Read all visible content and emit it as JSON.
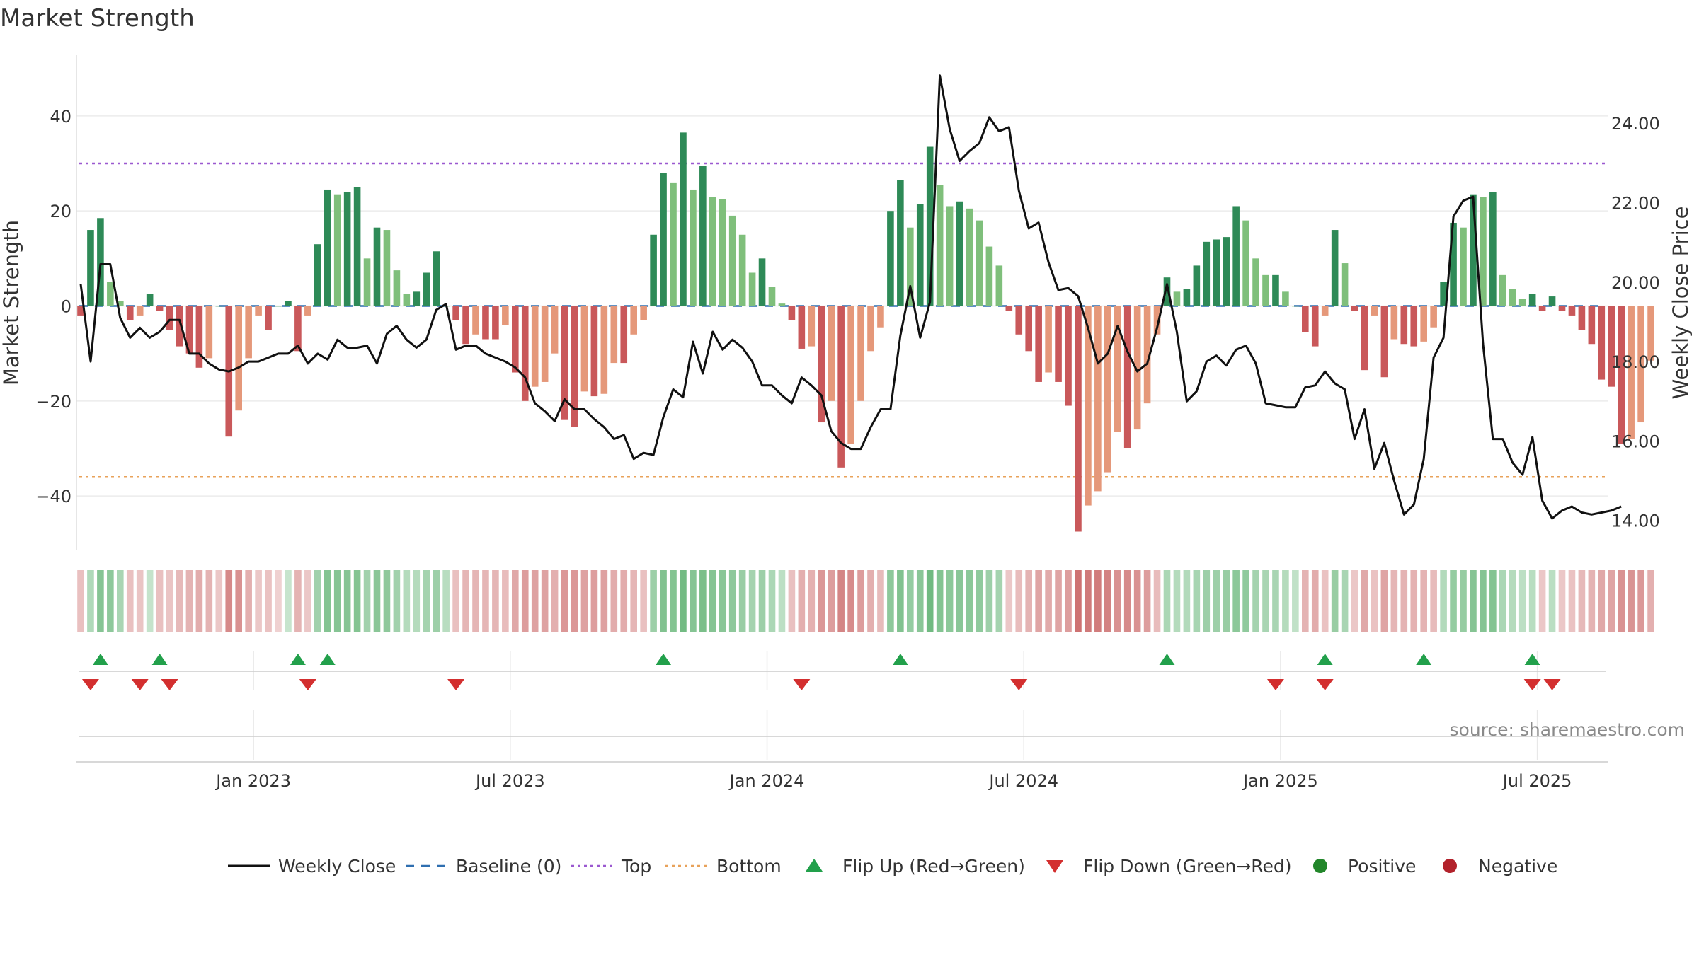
{
  "title": "Market Strength",
  "source": "source: sharemaestro.com",
  "colors": {
    "line": "#111111",
    "baseline": "#2f6fb0",
    "top": "#9b59d0",
    "bottom": "#e8a25a",
    "flip_up": "#22a04b",
    "flip_down": "#d32f2f",
    "positive": "#22862a",
    "negative": "#b2222b"
  },
  "chart_data": {
    "type": "bar+line",
    "title": "Market Strength",
    "ylabel": "Market Strength",
    "y2label": "Weekly Close Price",
    "ylim": [
      -51,
      51
    ],
    "y2lim": [
      13.3,
      25.5
    ],
    "yticks": [
      40,
      20,
      0,
      -20,
      -40
    ],
    "yticklabels": [
      "40",
      "20",
      "0",
      "−20",
      "−40"
    ],
    "y2ticks": [
      24,
      22,
      20,
      18,
      16,
      14
    ],
    "y2ticklabels": [
      "24.00",
      "22.00",
      "20.00",
      "18.00",
      "16.00",
      "14.00"
    ],
    "xlabels": [
      "Jan 2023",
      "Jul 2023",
      "Jan 2024",
      "Jul 2024",
      "Jan 2025",
      "Jul 2025"
    ],
    "xlabel_week_index": [
      17.5,
      43.5,
      69.5,
      95.5,
      121.5,
      147.5
    ],
    "reference_lines": {
      "baseline": 0,
      "top": 30,
      "bottom": -36
    },
    "strength": [
      -2,
      16,
      18.5,
      5,
      1,
      -3,
      -2,
      2.5,
      -1,
      -5,
      -8.5,
      -10,
      -13,
      -11,
      0,
      -27.5,
      -22,
      -11,
      -2,
      -5,
      0,
      1,
      -9.5,
      -2,
      13,
      24.5,
      23.5,
      24,
      25,
      10,
      16.5,
      16,
      7.5,
      2.5,
      3,
      7,
      11.5,
      0,
      -3,
      -8,
      -6,
      -7,
      -7,
      -4,
      -14,
      -20,
      -17,
      -16,
      -10,
      -24,
      -25.5,
      -18,
      -19,
      -18.5,
      -12,
      -12,
      -6,
      -3,
      15,
      28,
      26,
      36.5,
      24.5,
      29.5,
      23,
      22.5,
      19,
      15,
      7,
      10,
      4,
      0.5,
      -3,
      -9,
      -8.5,
      -24.5,
      -20,
      -34,
      -29,
      -20,
      -9.5,
      -4.5,
      20,
      26.5,
      16.5,
      21.5,
      33.5,
      25.5,
      21,
      22,
      20.5,
      18,
      12.5,
      8.5,
      -1,
      -6,
      -9.5,
      -16,
      -14,
      -16,
      -21,
      -47.5,
      -42,
      -39,
      -35,
      -26.5,
      -30,
      -26,
      -20.5,
      -6,
      6,
      3,
      3.5,
      8.5,
      13.5,
      14,
      14.5,
      21,
      18,
      10,
      6.5,
      6.5,
      3,
      0,
      -5.5,
      -8.5,
      -2,
      16,
      9,
      -1,
      -13.5,
      -2,
      -15,
      -7,
      -8,
      -8.5,
      -7.5,
      -4.5,
      5,
      17.5,
      16.5,
      23.5,
      23,
      24,
      6.5,
      3.5,
      1.5,
      2.5,
      -1,
      2,
      -1,
      -2,
      -5,
      -8,
      -15.5,
      -17,
      -29,
      -28,
      -24.5,
      -11.5
    ],
    "close": [
      19.95,
      18.0,
      20.45,
      20.45,
      19.1,
      18.6,
      18.85,
      18.6,
      18.75,
      19.05,
      19.05,
      18.2,
      18.2,
      17.95,
      17.8,
      17.75,
      17.85,
      18.0,
      18.0,
      18.1,
      18.2,
      18.2,
      18.4,
      17.95,
      18.2,
      18.05,
      18.55,
      18.35,
      18.35,
      18.4,
      17.95,
      18.7,
      18.9,
      18.55,
      18.35,
      18.55,
      19.3,
      19.45,
      18.3,
      18.4,
      18.4,
      18.2,
      18.1,
      18.0,
      17.85,
      17.6,
      16.95,
      16.75,
      16.5,
      17.05,
      16.8,
      16.8,
      16.55,
      16.35,
      16.05,
      16.15,
      15.55,
      15.7,
      15.65,
      16.6,
      17.3,
      17.1,
      18.5,
      17.7,
      18.75,
      18.3,
      18.55,
      18.35,
      18.0,
      17.4,
      17.4,
      17.15,
      16.95,
      17.6,
      17.4,
      17.15,
      16.25,
      15.95,
      15.8,
      15.8,
      16.35,
      16.8,
      16.8,
      18.65,
      19.9,
      18.6,
      19.5,
      25.2,
      23.85,
      23.05,
      23.3,
      23.5,
      24.15,
      23.8,
      23.9,
      22.3,
      21.35,
      21.5,
      20.5,
      19.8,
      19.85,
      19.65,
      18.85,
      17.95,
      18.2,
      18.9,
      18.25,
      17.75,
      17.95,
      18.85,
      19.95,
      18.75,
      17.0,
      17.25,
      18.0,
      18.15,
      17.9,
      18.3,
      18.4,
      17.95,
      16.95,
      16.9,
      16.85,
      16.85,
      17.35,
      17.4,
      17.75,
      17.45,
      17.3,
      16.05,
      16.8,
      15.3,
      15.95,
      15.0,
      14.15,
      14.4,
      15.55,
      18.1,
      18.6,
      21.65,
      22.05,
      22.15,
      18.45,
      16.05,
      16.05,
      15.45,
      15.15,
      16.1,
      14.5,
      14.05,
      14.25,
      14.35,
      14.2,
      14.15,
      14.2,
      14.25,
      14.35
    ],
    "regime_shade": [
      0.22,
      0.28,
      0.58,
      0.52,
      0.32,
      0.22,
      0.18,
      0.12,
      0.22,
      0.18,
      0.28,
      0.32,
      0.38,
      0.32,
      0.15,
      0.66,
      0.6,
      0.35,
      0.15,
      0.2,
      0.08,
      0.1,
      0.32,
      0.15,
      0.38,
      0.6,
      0.58,
      0.58,
      0.6,
      0.38,
      0.55,
      0.52,
      0.38,
      0.25,
      0.25,
      0.35,
      0.42,
      0.22,
      0.22,
      0.3,
      0.3,
      0.3,
      0.3,
      0.25,
      0.42,
      0.5,
      0.48,
      0.46,
      0.36,
      0.55,
      0.56,
      0.48,
      0.5,
      0.48,
      0.38,
      0.38,
      0.3,
      0.22,
      0.42,
      0.62,
      0.6,
      0.72,
      0.58,
      0.66,
      0.58,
      0.56,
      0.52,
      0.45,
      0.36,
      0.42,
      0.3,
      0.18,
      0.22,
      0.36,
      0.34,
      0.56,
      0.5,
      0.7,
      0.64,
      0.5,
      0.36,
      0.26,
      0.52,
      0.62,
      0.48,
      0.56,
      0.74,
      0.6,
      0.54,
      0.56,
      0.54,
      0.5,
      0.42,
      0.36,
      0.15,
      0.25,
      0.32,
      0.44,
      0.4,
      0.44,
      0.5,
      0.86,
      0.8,
      0.78,
      0.72,
      0.6,
      0.66,
      0.6,
      0.5,
      0.25,
      0.3,
      0.25,
      0.26,
      0.34,
      0.42,
      0.42,
      0.44,
      0.54,
      0.5,
      0.36,
      0.32,
      0.32,
      0.25,
      0.15,
      0.32,
      0.38,
      0.2,
      0.44,
      0.32,
      0.16,
      0.42,
      0.2,
      0.44,
      0.3,
      0.32,
      0.34,
      0.32,
      0.26,
      0.26,
      0.48,
      0.46,
      0.58,
      0.58,
      0.6,
      0.3,
      0.24,
      0.18,
      0.22,
      0.15,
      0.2,
      0.15,
      0.2,
      0.28,
      0.32,
      0.42,
      0.44,
      0.6,
      0.58,
      0.54,
      0.36
    ],
    "flip_up_week_index": [
      2,
      8,
      22,
      25,
      59,
      83,
      110,
      126,
      136,
      147
    ],
    "flip_down_week_index": [
      1,
      6,
      9,
      23,
      38,
      73,
      95,
      121,
      126,
      147,
      149
    ],
    "legend": [
      {
        "label": "Weekly Close",
        "marker": "line"
      },
      {
        "label": "Baseline (0)",
        "marker": "dash"
      },
      {
        "label": "Top",
        "marker": "dot"
      },
      {
        "label": "Bottom",
        "marker": "dot"
      },
      {
        "label": "Flip Up (Red→Green)",
        "marker": "triangle-up"
      },
      {
        "label": "Flip Down (Green→Red)",
        "marker": "triangle-down"
      },
      {
        "label": "Positive",
        "marker": "circle"
      },
      {
        "label": "Negative",
        "marker": "circle"
      }
    ]
  }
}
